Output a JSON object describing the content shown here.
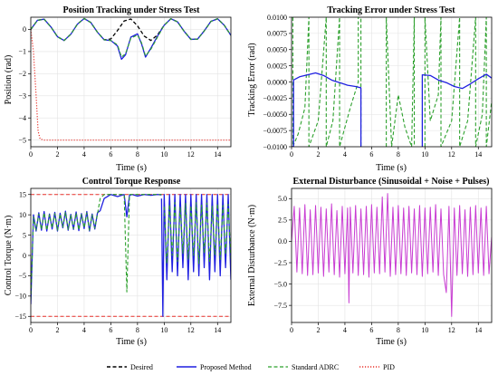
{
  "colors": {
    "desired": "#000000",
    "proposed": "#1f1fe0",
    "adrc": "#2ca02c",
    "pid": "#e8302a",
    "disturbance": "#c83cd2",
    "grid": "#e3e3e3",
    "limit": "#e8302a"
  },
  "legend": [
    {
      "key": "desired",
      "label": "Desired",
      "style": "dashed"
    },
    {
      "key": "proposed",
      "label": "Proposed Method",
      "style": "solid"
    },
    {
      "key": "adrc",
      "label": "Standard ADRC",
      "style": "dashed"
    },
    {
      "key": "pid",
      "label": "PID",
      "style": "dotted"
    }
  ],
  "chart_data": [
    {
      "id": "position",
      "type": "line",
      "title": "Position Tracking under Stress Test",
      "xlabel": "Time (s)",
      "ylabel": "Position (rad)",
      "xlim": [
        0,
        15
      ],
      "ylim": [
        -5.3,
        0.55
      ],
      "xticks": [
        0,
        2,
        4,
        6,
        8,
        10,
        12,
        14
      ],
      "xtick_labels": [
        "0",
        "2",
        "4",
        "6",
        "8",
        "10",
        "12",
        "14"
      ],
      "yticks": [
        0,
        -1,
        -2,
        -3,
        -4,
        -5
      ],
      "ytick_labels": [
        "0",
        "−1",
        "−2",
        "−3",
        "−4",
        "−5"
      ],
      "grid": true,
      "series": [
        {
          "key": "desired",
          "x": [
            0,
            0.5,
            1.0,
            1.5,
            2.0,
            2.5,
            3.0,
            3.5,
            4.0,
            4.5,
            5.0,
            5.5,
            6.0,
            6.5,
            7.0,
            7.5,
            8.0,
            8.5,
            9.0,
            9.5,
            10.0,
            10.5,
            11.0,
            11.5,
            12.0,
            12.5,
            13.0,
            13.5,
            14.0,
            14.5,
            15.0
          ],
          "y": [
            0.0,
            0.41,
            0.46,
            0.12,
            -0.33,
            -0.5,
            -0.22,
            0.24,
            0.49,
            0.31,
            -0.13,
            -0.47,
            -0.43,
            -0.05,
            0.38,
            0.47,
            0.16,
            -0.3,
            -0.5,
            -0.25,
            0.19,
            0.48,
            0.34,
            -0.09,
            -0.45,
            -0.44,
            -0.07,
            0.36,
            0.48,
            0.19,
            -0.27
          ]
        },
        {
          "key": "proposed",
          "x": [
            0,
            0.5,
            1.0,
            1.5,
            2.0,
            2.5,
            3.0,
            3.5,
            4.0,
            4.5,
            5.0,
            5.5,
            6.0,
            6.5,
            6.8,
            7.1,
            7.5,
            8.0,
            8.3,
            8.6,
            9.0,
            9.5,
            10.0,
            10.5,
            11.0,
            11.5,
            12.0,
            12.5,
            13.0,
            13.5,
            14.0,
            14.5,
            15.0
          ],
          "y": [
            0.0,
            0.41,
            0.46,
            0.12,
            -0.33,
            -0.5,
            -0.22,
            0.24,
            0.49,
            0.31,
            -0.13,
            -0.47,
            -0.5,
            -0.75,
            -1.35,
            -1.15,
            -0.35,
            -0.2,
            -0.65,
            -1.25,
            -0.85,
            -0.3,
            0.19,
            0.48,
            0.34,
            -0.09,
            -0.45,
            -0.44,
            -0.07,
            0.36,
            0.48,
            0.19,
            -0.27
          ]
        },
        {
          "key": "adrc",
          "x": [
            0,
            0.5,
            1.0,
            1.5,
            2.0,
            2.5,
            3.0,
            3.5,
            4.0,
            4.5,
            5.0,
            5.5,
            6.0,
            6.5,
            6.8,
            7.1,
            7.5,
            8.0,
            8.3,
            8.6,
            9.0,
            9.5,
            10.0,
            10.5,
            11.0,
            11.5,
            12.0,
            12.5,
            13.0,
            13.5,
            14.0,
            14.5,
            15.0
          ],
          "y": [
            0.0,
            0.41,
            0.46,
            0.12,
            -0.33,
            -0.5,
            -0.22,
            0.24,
            0.49,
            0.31,
            -0.13,
            -0.47,
            -0.5,
            -0.7,
            -1.25,
            -1.1,
            -0.4,
            -0.25,
            -0.6,
            -1.2,
            -0.9,
            -0.35,
            0.19,
            0.48,
            0.34,
            -0.09,
            -0.45,
            -0.44,
            -0.07,
            0.36,
            0.48,
            0.19,
            -0.27
          ]
        },
        {
          "key": "pid",
          "x": [
            0,
            0.2,
            0.4,
            0.55,
            0.7,
            1.0,
            3.0,
            6.0,
            9.0,
            12.0,
            15.0
          ],
          "y": [
            0.0,
            -1.0,
            -3.0,
            -4.6,
            -4.95,
            -5.0,
            -5.0,
            -5.0,
            -5.0,
            -5.0,
            -5.0
          ]
        }
      ]
    },
    {
      "id": "error",
      "type": "line",
      "title": "Tracking Error under Stress Test",
      "xlabel": "Time (s)",
      "ylabel": "Tracking Error (rad)",
      "xlim": [
        0,
        15
      ],
      "ylim": [
        -0.01,
        0.01
      ],
      "xticks": [
        0,
        2,
        4,
        6,
        8,
        10,
        12,
        14
      ],
      "xtick_labels": [
        "0",
        "2",
        "4",
        "6",
        "8",
        "10",
        "12",
        "14"
      ],
      "yticks": [
        0.01,
        0.0075,
        0.005,
        0.0025,
        0,
        -0.0025,
        -0.005,
        -0.0075,
        -0.01
      ],
      "ytick_labels": [
        "0.0100",
        "0.0075",
        "0.0050",
        "0.0025",
        "0.0000",
        "−0.0025",
        "−0.0050",
        "−0.0075",
        "−0.0100"
      ],
      "grid": true,
      "series": [
        {
          "key": "adrc",
          "x": [
            0.1,
            0.1,
            0.5,
            1.0,
            1.3,
            1.3,
            2.0,
            2.6,
            2.6,
            3.1,
            3.6,
            3.6,
            4.4,
            5.0,
            5.0,
            5.2,
            5.2
          ],
          "y": [
            0.01,
            -0.01,
            -0.008,
            -0.004,
            0.01,
            -0.01,
            -0.006,
            0.01,
            -0.01,
            -0.006,
            0.01,
            -0.01,
            -0.004,
            0.0,
            0.01,
            0.01,
            -0.01
          ]
        },
        {
          "key": "adrc",
          "x": [
            7.1,
            7.1,
            7.5,
            8.0,
            8.5,
            9.0,
            9.2,
            9.2
          ],
          "y": [
            -0.01,
            0.01,
            -0.01,
            -0.002,
            -0.007,
            -0.01,
            0.01,
            -0.01
          ]
        },
        {
          "key": "adrc",
          "x": [
            10.0,
            10.0,
            10.4,
            11.0,
            11.2,
            11.2,
            12.0,
            12.6,
            12.6,
            13.2,
            13.8,
            13.8,
            14.3,
            14.6,
            14.6,
            15.0
          ],
          "y": [
            -0.01,
            0.01,
            -0.006,
            -0.002,
            0.01,
            -0.01,
            -0.006,
            0.01,
            -0.01,
            -0.006,
            0.01,
            -0.01,
            -0.005,
            0.01,
            -0.01,
            -0.003
          ]
        },
        {
          "key": "proposed",
          "x": [
            0.0,
            0.15,
            0.15,
            0.6,
            1.2,
            1.8,
            2.4,
            3.0,
            3.6,
            4.2,
            4.8,
            5.2,
            5.2
          ],
          "y": [
            -0.01,
            -0.01,
            0.0003,
            0.0008,
            0.0011,
            0.0014,
            0.001,
            0.0003,
            -0.0001,
            -0.0005,
            -0.0007,
            -0.0009,
            -0.01
          ]
        },
        {
          "key": "proposed",
          "x": [
            9.8,
            9.8,
            10.4,
            11.0,
            11.6,
            12.2,
            12.8,
            13.4,
            14.0,
            14.6,
            15.0
          ],
          "y": [
            -0.01,
            0.0011,
            0.001,
            0.0003,
            -0.0001,
            -0.0007,
            -0.001,
            -0.0003,
            0.0005,
            0.0012,
            0.0006
          ]
        }
      ]
    },
    {
      "id": "torque",
      "type": "line",
      "title": "Control Torque Response",
      "xlabel": "Time (s)",
      "ylabel": "Control Torque (N·m)",
      "xlim": [
        0,
        15
      ],
      "ylim": [
        -16.5,
        16.5
      ],
      "xticks": [
        0,
        2,
        4,
        6,
        8,
        10,
        12,
        14
      ],
      "xtick_labels": [
        "0",
        "2",
        "4",
        "6",
        "8",
        "10",
        "12",
        "14"
      ],
      "yticks": [
        15,
        10,
        5,
        0,
        -5,
        -10,
        -15
      ],
      "ytick_labels": [
        "15",
        "10",
        "5",
        "0",
        "−5",
        "−10",
        "−15"
      ],
      "limits": [
        15,
        -15
      ],
      "grid": true,
      "series": [
        {
          "key": "proposed",
          "x": [
            0.0,
            0.2,
            0.4,
            0.6,
            0.8,
            1.0,
            1.2,
            1.4,
            1.6,
            1.8,
            2.0,
            2.2,
            2.4,
            2.6,
            2.8,
            3.0,
            3.2,
            3.4,
            3.6,
            3.8,
            4.0,
            4.2,
            4.4,
            4.6,
            4.8,
            5.0,
            5.2,
            5.5,
            6.0,
            6.5,
            7.0,
            7.2,
            7.4,
            7.6,
            8.0,
            8.5,
            9.0,
            9.5,
            9.8
          ],
          "y": [
            -12.0,
            10.0,
            6.0,
            10.5,
            6.2,
            10.8,
            6.0,
            10.2,
            6.5,
            10.6,
            6.0,
            10.4,
            6.8,
            10.9,
            6.2,
            10.1,
            6.4,
            10.7,
            6.1,
            10.3,
            6.6,
            10.8,
            6.0,
            10.2,
            6.5,
            10.5,
            11.0,
            14.0,
            15.0,
            14.5,
            15.0,
            9.5,
            14.8,
            15.0,
            14.6,
            15.0,
            14.8,
            15.0,
            14.9
          ]
        },
        {
          "key": "adrc",
          "x": [
            0.0,
            0.2,
            0.4,
            0.6,
            0.8,
            1.0,
            1.2,
            1.4,
            1.6,
            1.8,
            2.0,
            2.2,
            2.4,
            2.6,
            2.8,
            3.0,
            3.2,
            3.4,
            3.6,
            3.8,
            4.0,
            4.2,
            4.4,
            4.6,
            4.8,
            5.0,
            5.2,
            5.5,
            6.0,
            6.5,
            7.0,
            7.2,
            7.4,
            7.6,
            8.0,
            8.5,
            9.0,
            9.5,
            9.8
          ],
          "y": [
            -11.0,
            9.5,
            6.2,
            10.2,
            6.4,
            10.5,
            6.2,
            10.0,
            6.8,
            10.3,
            6.2,
            10.2,
            7.0,
            10.6,
            6.4,
            9.9,
            6.6,
            10.4,
            6.3,
            10.1,
            6.8,
            10.5,
            6.2,
            10.0,
            6.7,
            10.2,
            14.0,
            15.0,
            15.0,
            15.0,
            15.0,
            -9.0,
            15.0,
            15.0,
            15.0,
            15.0,
            15.0,
            15.0,
            15.0
          ]
        },
        {
          "key": "proposed",
          "x": [
            9.8,
            9.9,
            10.0,
            10.2,
            10.4,
            10.6,
            10.8,
            11.0,
            11.2,
            11.4,
            11.6,
            11.8,
            12.0,
            12.2,
            12.4,
            12.6,
            12.8,
            13.0,
            13.2,
            13.4,
            13.6,
            13.8,
            14.0,
            14.2,
            14.4,
            14.6,
            14.8,
            15.0
          ],
          "y": [
            14.0,
            -15.0,
            15.0,
            -6.0,
            15.0,
            -4.0,
            15.0,
            -5.0,
            15.0,
            -3.0,
            15.0,
            -6.0,
            15.0,
            -4.0,
            15.0,
            -5.0,
            15.0,
            -3.0,
            15.0,
            -6.0,
            15.0,
            -4.0,
            15.0,
            -5.0,
            15.0,
            -3.0,
            15.0,
            -6.0
          ]
        },
        {
          "key": "adrc",
          "x": [
            10.0,
            10.2,
            10.4,
            10.6,
            10.8,
            11.0,
            11.2,
            11.4,
            11.6,
            11.8,
            12.0,
            12.2,
            12.4,
            12.6,
            12.8,
            13.0,
            13.2,
            13.4,
            13.6,
            13.8,
            14.0,
            14.2,
            14.4,
            14.6,
            14.8,
            15.0
          ],
          "y": [
            12.0,
            -2.0,
            12.5,
            0.0,
            13.0,
            -1.5,
            12.0,
            0.5,
            12.8,
            -1.0,
            12.2,
            0.0,
            13.0,
            -2.0,
            12.4,
            0.5,
            12.9,
            -1.5,
            12.1,
            0.0,
            12.7,
            -1.0,
            12.3,
            0.2,
            12.6,
            -1.0
          ]
        }
      ]
    },
    {
      "id": "disturbance",
      "type": "line",
      "title": "External Disturbance (Sinusoidal + Noise + Pulses)",
      "xlabel": "Time (s)",
      "ylabel": "External Disturbance (N·m)",
      "xlim": [
        0,
        15
      ],
      "ylim": [
        -9.5,
        6.2
      ],
      "xticks": [
        0,
        2,
        4,
        6,
        8,
        10,
        12,
        14
      ],
      "xtick_labels": [
        "0",
        "2",
        "4",
        "6",
        "8",
        "10",
        "12",
        "14"
      ],
      "yticks": [
        5,
        2.5,
        0,
        -2.5,
        -5,
        -7.5
      ],
      "ytick_labels": [
        "5.0",
        "2.5",
        "0.0",
        "−2.5",
        "−5.0",
        "−7.5"
      ],
      "grid": true,
      "series": [
        {
          "key": "disturbance",
          "x": [
            0.0,
            0.2,
            0.4,
            0.6,
            0.8,
            1.0,
            1.2,
            1.4,
            1.6,
            1.8,
            2.0,
            2.2,
            2.4,
            2.6,
            2.8,
            3.0,
            3.2,
            3.4,
            3.6,
            3.8,
            4.0,
            4.2,
            4.3,
            4.4,
            4.6,
            4.8,
            5.0,
            5.2,
            5.4,
            5.6,
            5.8,
            6.0,
            6.2,
            6.4,
            6.6,
            6.8,
            7.0,
            7.2,
            7.4,
            7.6,
            7.8,
            8.0,
            8.2,
            8.4,
            8.6,
            8.8,
            9.0,
            9.2,
            9.4,
            9.6,
            9.8,
            10.0,
            10.2,
            10.4,
            10.6,
            10.8,
            11.0,
            11.2,
            11.4,
            11.6,
            11.8,
            12.0,
            12.2,
            12.4,
            12.6,
            12.8,
            13.0,
            13.2,
            13.4,
            13.6,
            13.8,
            14.0,
            14.2,
            14.4,
            14.6,
            14.8,
            15.0
          ],
          "y": [
            0.0,
            4.1,
            -3.6,
            3.9,
            -3.8,
            4.3,
            -4.0,
            3.7,
            -3.9,
            4.2,
            -3.7,
            4.0,
            -4.1,
            3.8,
            -3.6,
            4.4,
            -3.9,
            3.6,
            -4.2,
            4.1,
            -3.8,
            3.9,
            -7.2,
            4.0,
            -3.7,
            4.2,
            -4.0,
            3.8,
            -3.9,
            4.1,
            -4.2,
            4.3,
            -3.7,
            4.0,
            -3.8,
            5.2,
            -3.6,
            5.6,
            -4.1,
            4.0,
            -3.9,
            4.2,
            -3.8,
            3.9,
            -4.0,
            4.1,
            -3.7,
            3.8,
            -3.9,
            4.2,
            -4.1,
            3.9,
            -3.8,
            4.0,
            -3.6,
            4.3,
            -4.0,
            3.8,
            -3.9,
            -6.0,
            4.1,
            -8.8,
            3.9,
            -4.0,
            4.2,
            -3.8,
            3.7,
            -4.1,
            4.0,
            -3.9,
            4.2,
            -3.7,
            3.9,
            -4.0,
            4.1,
            -3.8,
            0.5
          ]
        }
      ]
    }
  ]
}
